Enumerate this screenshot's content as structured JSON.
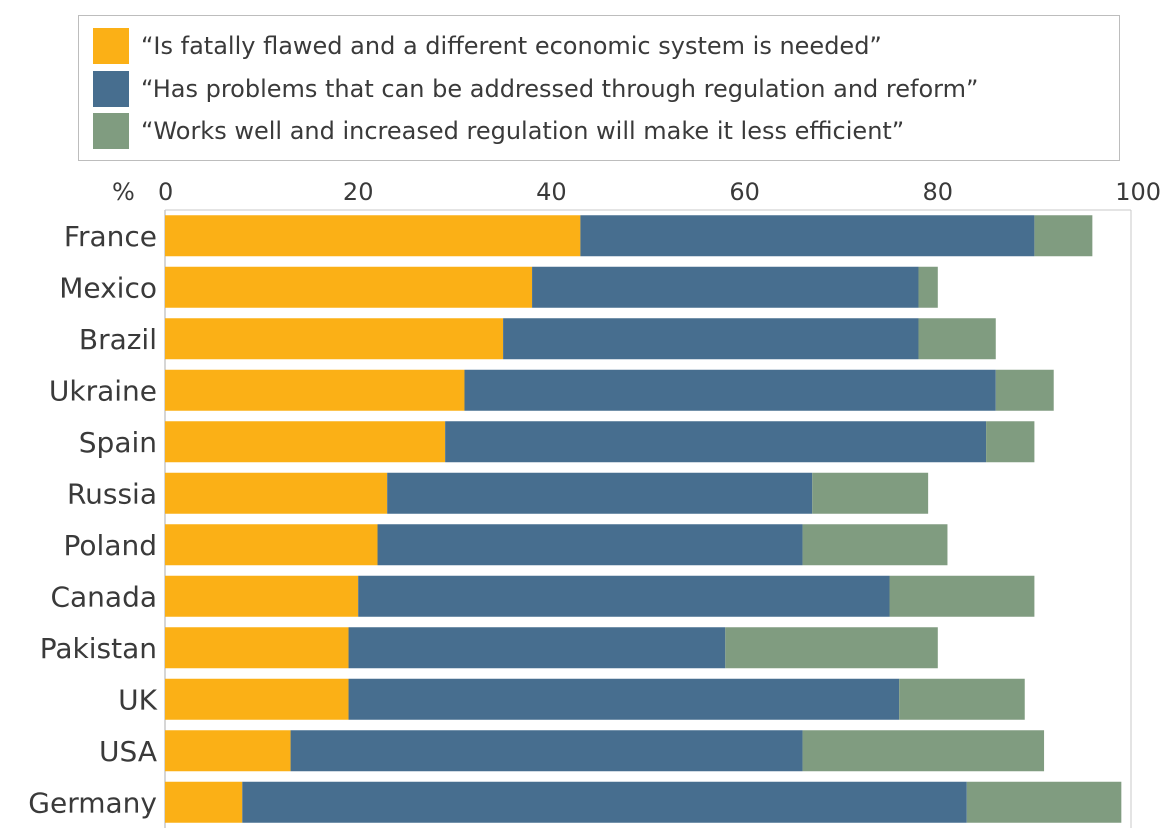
{
  "legend": {
    "items": [
      {
        "label": "“Is fatally flawed and a different economic system is needed”",
        "color": "#FBB016"
      },
      {
        "label": "“Has problems that can be addressed through regulation and reform”",
        "color": "#476E8F"
      },
      {
        "label": "“Works well and increased regulation will make it less efficient”",
        "color": "#809C80"
      }
    ]
  },
  "chart_data": {
    "type": "bar",
    "orientation": "horizontal",
    "stacked": true,
    "axis_unit_label": "%",
    "xlim": [
      0,
      100
    ],
    "x_ticks": [
      "0",
      "20",
      "40",
      "60",
      "80",
      "100"
    ],
    "grid": false,
    "legend_position": "top",
    "categories": [
      "France",
      "Mexico",
      "Brazil",
      "Ukraine",
      "Spain",
      "Russia",
      "Poland",
      "Canada",
      "Pakistan",
      "UK",
      "USA",
      "Germany"
    ],
    "series": [
      {
        "name": "“Is fatally flawed and a different economic system is needed”",
        "color": "#FBB016",
        "values": [
          43,
          38,
          35,
          31,
          29,
          23,
          22,
          20,
          19,
          19,
          13,
          8
        ]
      },
      {
        "name": "“Has problems that can be addressed through regulation and reform”",
        "color": "#476E8F",
        "values": [
          47,
          40,
          43,
          55,
          56,
          44,
          44,
          55,
          39,
          57,
          53,
          75
        ]
      },
      {
        "name": "“Works well and increased regulation will make it less efficient”",
        "color": "#809C80",
        "values": [
          6,
          2,
          8,
          6,
          5,
          12,
          15,
          15,
          22,
          13,
          25,
          16
        ]
      }
    ]
  }
}
